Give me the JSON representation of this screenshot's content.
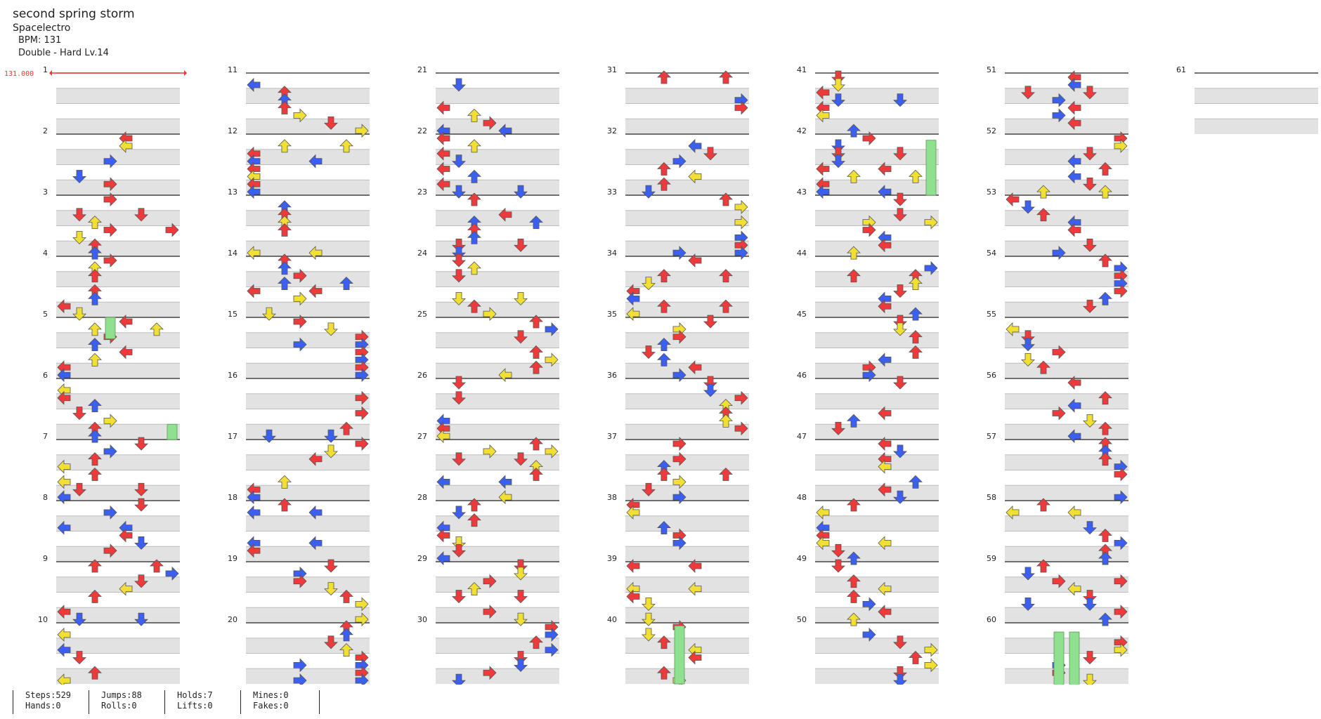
{
  "song": {
    "title": "second spring storm",
    "artist": "Spacelectro",
    "bpm_label": "BPM: 131",
    "difficulty_label": "Double - Hard Lv.14"
  },
  "bpm_change_label": "131.000",
  "measure_numbers": [
    "1",
    "2",
    "3",
    "4",
    "5",
    "6",
    "7",
    "8",
    "9",
    "10",
    "11",
    "12",
    "13",
    "14",
    "15",
    "16",
    "17",
    "18",
    "19",
    "20",
    "21",
    "22",
    "23",
    "24",
    "25",
    "26",
    "27",
    "28",
    "29",
    "30",
    "31",
    "32",
    "33",
    "34",
    "35",
    "36",
    "37",
    "38",
    "39",
    "40",
    "41",
    "42",
    "43",
    "44",
    "45",
    "46",
    "47",
    "48",
    "49",
    "50",
    "51",
    "52",
    "53",
    "54",
    "55",
    "56",
    "57",
    "58",
    "59",
    "60",
    "61"
  ],
  "stats": [
    {
      "line1": "Steps:529",
      "line2": "Hands:0"
    },
    {
      "line1": "Jumps:88",
      "line2": "Rolls:0"
    },
    {
      "line1": "Holds:7",
      "line2": "Lifts:0"
    },
    {
      "line1": "Mines:0",
      "line2": "Fakes:0"
    }
  ],
  "colors": {
    "quarter": "#ee3a3a",
    "eighth": "#3b5ff0",
    "sixteenth": "#f1e033",
    "hold": "#8fe08f",
    "band": "#e2e2e2",
    "bpm_line": "#e33"
  }
}
